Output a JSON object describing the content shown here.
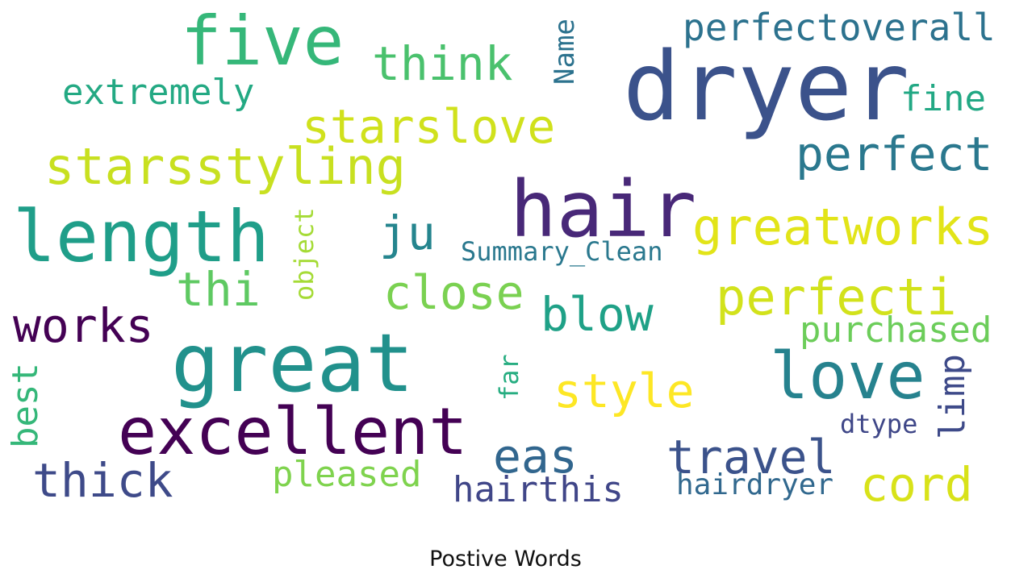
{
  "figure": {
    "caption": "Postive Words"
  },
  "words": [
    {
      "id": "dryer",
      "text": "dryer",
      "color": "#3b528b"
    },
    {
      "id": "hair",
      "text": "hair",
      "color": "#482878"
    },
    {
      "id": "five",
      "text": "five",
      "color": "#35b779"
    },
    {
      "id": "great",
      "text": "great",
      "color": "#21918c"
    },
    {
      "id": "excellent",
      "text": "excellent",
      "color": "#440154"
    },
    {
      "id": "length",
      "text": "length",
      "color": "#1f9e89"
    },
    {
      "id": "love",
      "text": "love",
      "color": "#26828e"
    },
    {
      "id": "think",
      "text": "think",
      "color": "#4ac16d"
    },
    {
      "id": "perfectoverall",
      "text": "perfectoverall",
      "color": "#2c728e"
    },
    {
      "id": "extremely",
      "text": "extremely",
      "color": "#23a983"
    },
    {
      "id": "starslove",
      "text": "starslove",
      "color": "#d0e11c"
    },
    {
      "id": "starsstyling",
      "text": "starsstyling",
      "color": "#c8e020"
    },
    {
      "id": "perfect",
      "text": "perfect",
      "color": "#2a788e"
    },
    {
      "id": "fine",
      "text": "fine",
      "color": "#22a884"
    },
    {
      "id": "greatworks",
      "text": "greatworks",
      "color": "#e2e418"
    },
    {
      "id": "ju",
      "text": "ju",
      "color": "#25858e"
    },
    {
      "id": "thi",
      "text": "thi",
      "color": "#5ec962"
    },
    {
      "id": "close",
      "text": "close",
      "color": "#7ad151"
    },
    {
      "id": "blow",
      "text": "blow",
      "color": "#1fa187"
    },
    {
      "id": "perfecti",
      "text": "perfecti",
      "color": "#d2e21b"
    },
    {
      "id": "works",
      "text": "works",
      "color": "#440154"
    },
    {
      "id": "purchased",
      "text": "purchased",
      "color": "#6ccd5a"
    },
    {
      "id": "style",
      "text": "style",
      "color": "#fde725"
    },
    {
      "id": "thick",
      "text": "thick",
      "color": "#3e4a89"
    },
    {
      "id": "eas",
      "text": "eas",
      "color": "#31668e"
    },
    {
      "id": "travel",
      "text": "travel",
      "color": "#3b528b"
    },
    {
      "id": "cord",
      "text": "cord",
      "color": "#d8e219"
    },
    {
      "id": "pleased",
      "text": "pleased",
      "color": "#7fd34e"
    },
    {
      "id": "hairthis",
      "text": "hairthis",
      "color": "#404688"
    },
    {
      "id": "hairdryer",
      "text": "hairdryer",
      "color": "#31688e"
    },
    {
      "id": "dtype",
      "text": "dtype",
      "color": "#3f4788"
    },
    {
      "id": "Summary_Clean",
      "text": "Summary_Clean",
      "color": "#2a788e"
    },
    {
      "id": "Name",
      "text": "Name",
      "color": "#2c728e"
    },
    {
      "id": "object",
      "text": "object",
      "color": "#a5db36"
    },
    {
      "id": "best",
      "text": "best",
      "color": "#35b779"
    },
    {
      "id": "far",
      "text": "far",
      "color": "#27ad81"
    },
    {
      "id": "limp",
      "text": "limp",
      "color": "#3e4a89"
    }
  ]
}
